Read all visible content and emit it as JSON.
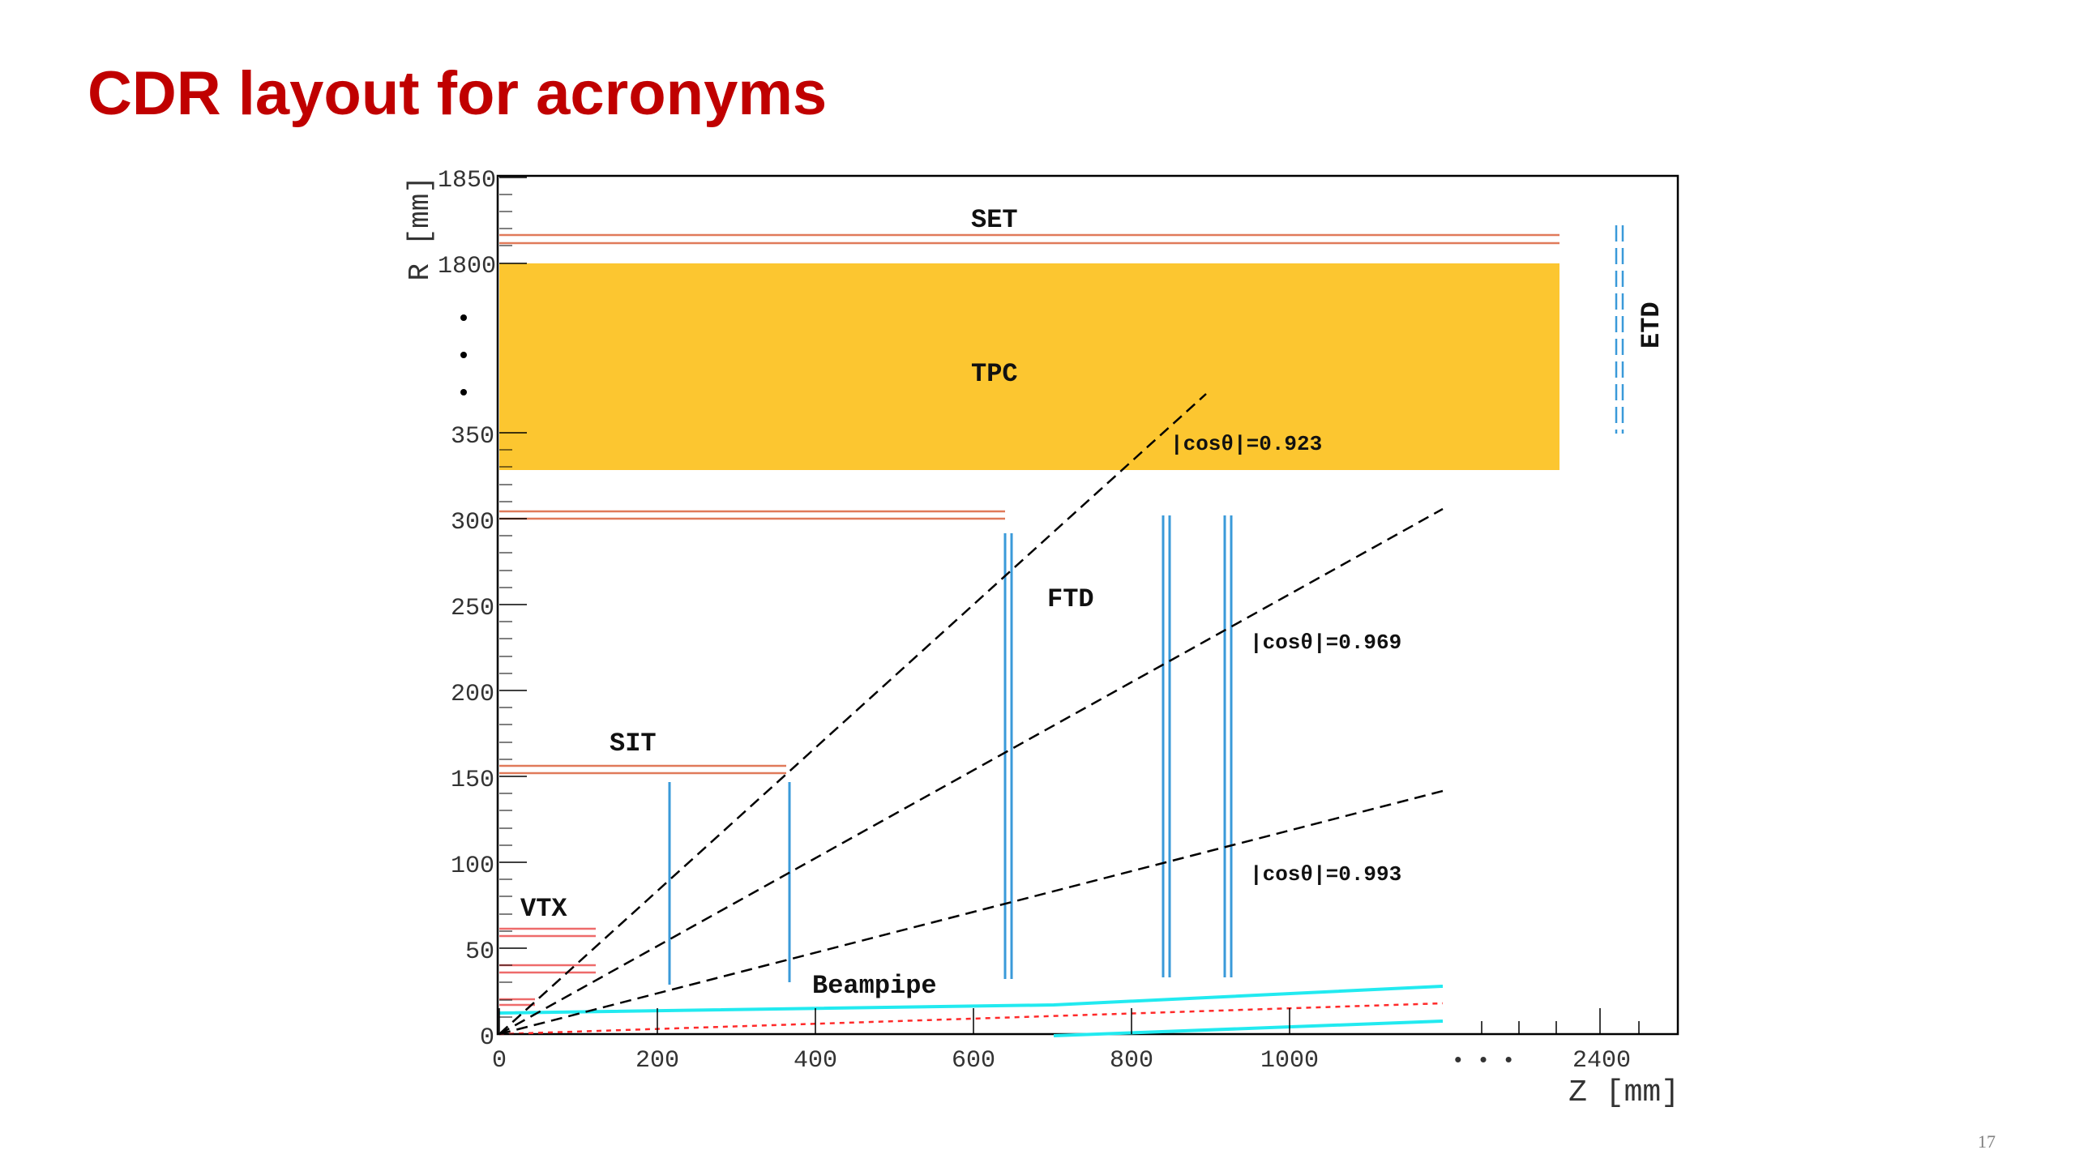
{
  "slide": {
    "title": "CDR layout for acronyms",
    "page_number": "17"
  },
  "axes": {
    "y_label": "R  [mm]",
    "x_label": "Z  [mm]",
    "y_ticks": [
      "0",
      "50",
      "100",
      "150",
      "200",
      "250",
      "300",
      "350",
      "1800",
      "1850"
    ],
    "x_ticks": [
      "0",
      "200",
      "400",
      "600",
      "800",
      "1000",
      "2400"
    ],
    "ellipsis_x": "•  •  •"
  },
  "labels": {
    "set": "SET",
    "tpc": "TPC",
    "etd": "ETD",
    "ftd": "FTD",
    "sit": "SIT",
    "vtx": "VTX",
    "beampipe": "Beampipe"
  },
  "angles": [
    {
      "text": "|cosθ|=0.923"
    },
    {
      "text": "|cosθ|=0.969"
    },
    {
      "text": "|cosθ|=0.993"
    }
  ],
  "colors": {
    "title": "#c00000",
    "tpc_fill": "#fcc630",
    "silicon_layer": "#e07a5a",
    "vtx_layer": "#ee6b6b",
    "ftd_disk": "#3a9ad9",
    "beampipe": "#22eaf0",
    "beam_dotted": "#ff2a2a"
  }
}
